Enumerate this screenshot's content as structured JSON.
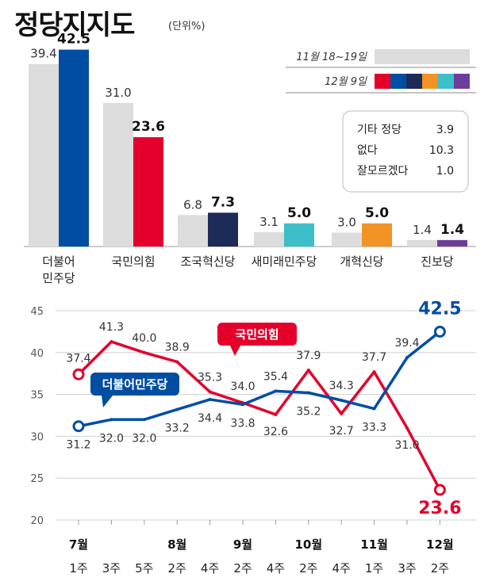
{
  "page": {
    "title": "정당지지도",
    "unit": "(단위%)"
  },
  "legend": {
    "prev_label": "11월 18~19일",
    "curr_label": "12월 9일",
    "prev_color": "#dcdcdc",
    "curr_colors": [
      "#e4002b",
      "#004ea2",
      "#1c2b57",
      "#f39325",
      "#3cbfc8",
      "#6e3d9c"
    ]
  },
  "other_box": [
    {
      "label": "기타 정당",
      "value": "3.9"
    },
    {
      "label": "없다",
      "value": "10.3"
    },
    {
      "label": "잘모르겠다",
      "value": "1.0"
    }
  ],
  "chart_data": [
    {
      "type": "bar",
      "categories": [
        "더불어\n민주당",
        "국민의힘",
        "조국혁신당",
        "새미래민주당",
        "개혁신당",
        "진보당"
      ],
      "series": [
        {
          "name": "11월 18~19일",
          "values": [
            39.4,
            31.0,
            6.8,
            3.1,
            3.0,
            1.4
          ]
        },
        {
          "name": "12월 9일",
          "values": [
            42.5,
            23.6,
            7.3,
            5.0,
            5.0,
            1.4
          ]
        }
      ],
      "value_labels_prev": [
        "39.4",
        "31.0",
        "6.8",
        "3.1",
        "3.0",
        "1.4"
      ],
      "value_labels_curr": [
        "42.5",
        "23.6",
        "7.3",
        "5.0",
        "5.0",
        "1.4"
      ],
      "bar_colors": [
        "#004ea2",
        "#e4002b",
        "#1c2b57",
        "#3cbfc8",
        "#f39325",
        "#6e3d9c"
      ],
      "prev_color": "#dcdcdc",
      "ylim": [
        0,
        45
      ]
    },
    {
      "type": "line",
      "x_months": [
        {
          "label": "7월",
          "index": 0
        },
        {
          "label": "8월",
          "index": 3
        },
        {
          "label": "9월",
          "index": 5
        },
        {
          "label": "10월",
          "index": 7
        },
        {
          "label": "11월",
          "index": 9
        },
        {
          "label": "12월",
          "index": 11
        }
      ],
      "x_weeks": [
        "1주",
        "3주",
        "5주",
        "2주",
        "4주",
        "2주",
        "4주",
        "2주",
        "4주",
        "1주",
        "3주",
        "2주"
      ],
      "yticks": [
        "45",
        "40",
        "35",
        "30",
        "25",
        "20"
      ],
      "ylim": [
        20,
        45
      ],
      "series": [
        {
          "name": "국민의힘",
          "color": "#e4002b",
          "values": [
            37.4,
            41.3,
            40.0,
            38.9,
            35.3,
            34.0,
            32.6,
            37.9,
            32.7,
            37.7,
            31.0,
            23.6
          ],
          "labels": [
            "37.4",
            "41.3",
            "40.0",
            "38.9",
            "35.3",
            "34.0",
            "32.6",
            "37.9",
            "32.7",
            "37.7",
            "31.0",
            "23.6"
          ]
        },
        {
          "name": "더불어민주당",
          "color": "#004ea2",
          "values": [
            31.2,
            32.0,
            32.0,
            33.2,
            34.4,
            33.8,
            35.4,
            35.2,
            34.3,
            33.3,
            39.4,
            42.5
          ],
          "labels": [
            "31.2",
            "32.0",
            "32.0",
            "33.2",
            "34.4",
            "33.8",
            "35.4",
            "35.2",
            "34.3",
            "33.3",
            "39.4",
            "42.5"
          ]
        }
      ]
    }
  ]
}
